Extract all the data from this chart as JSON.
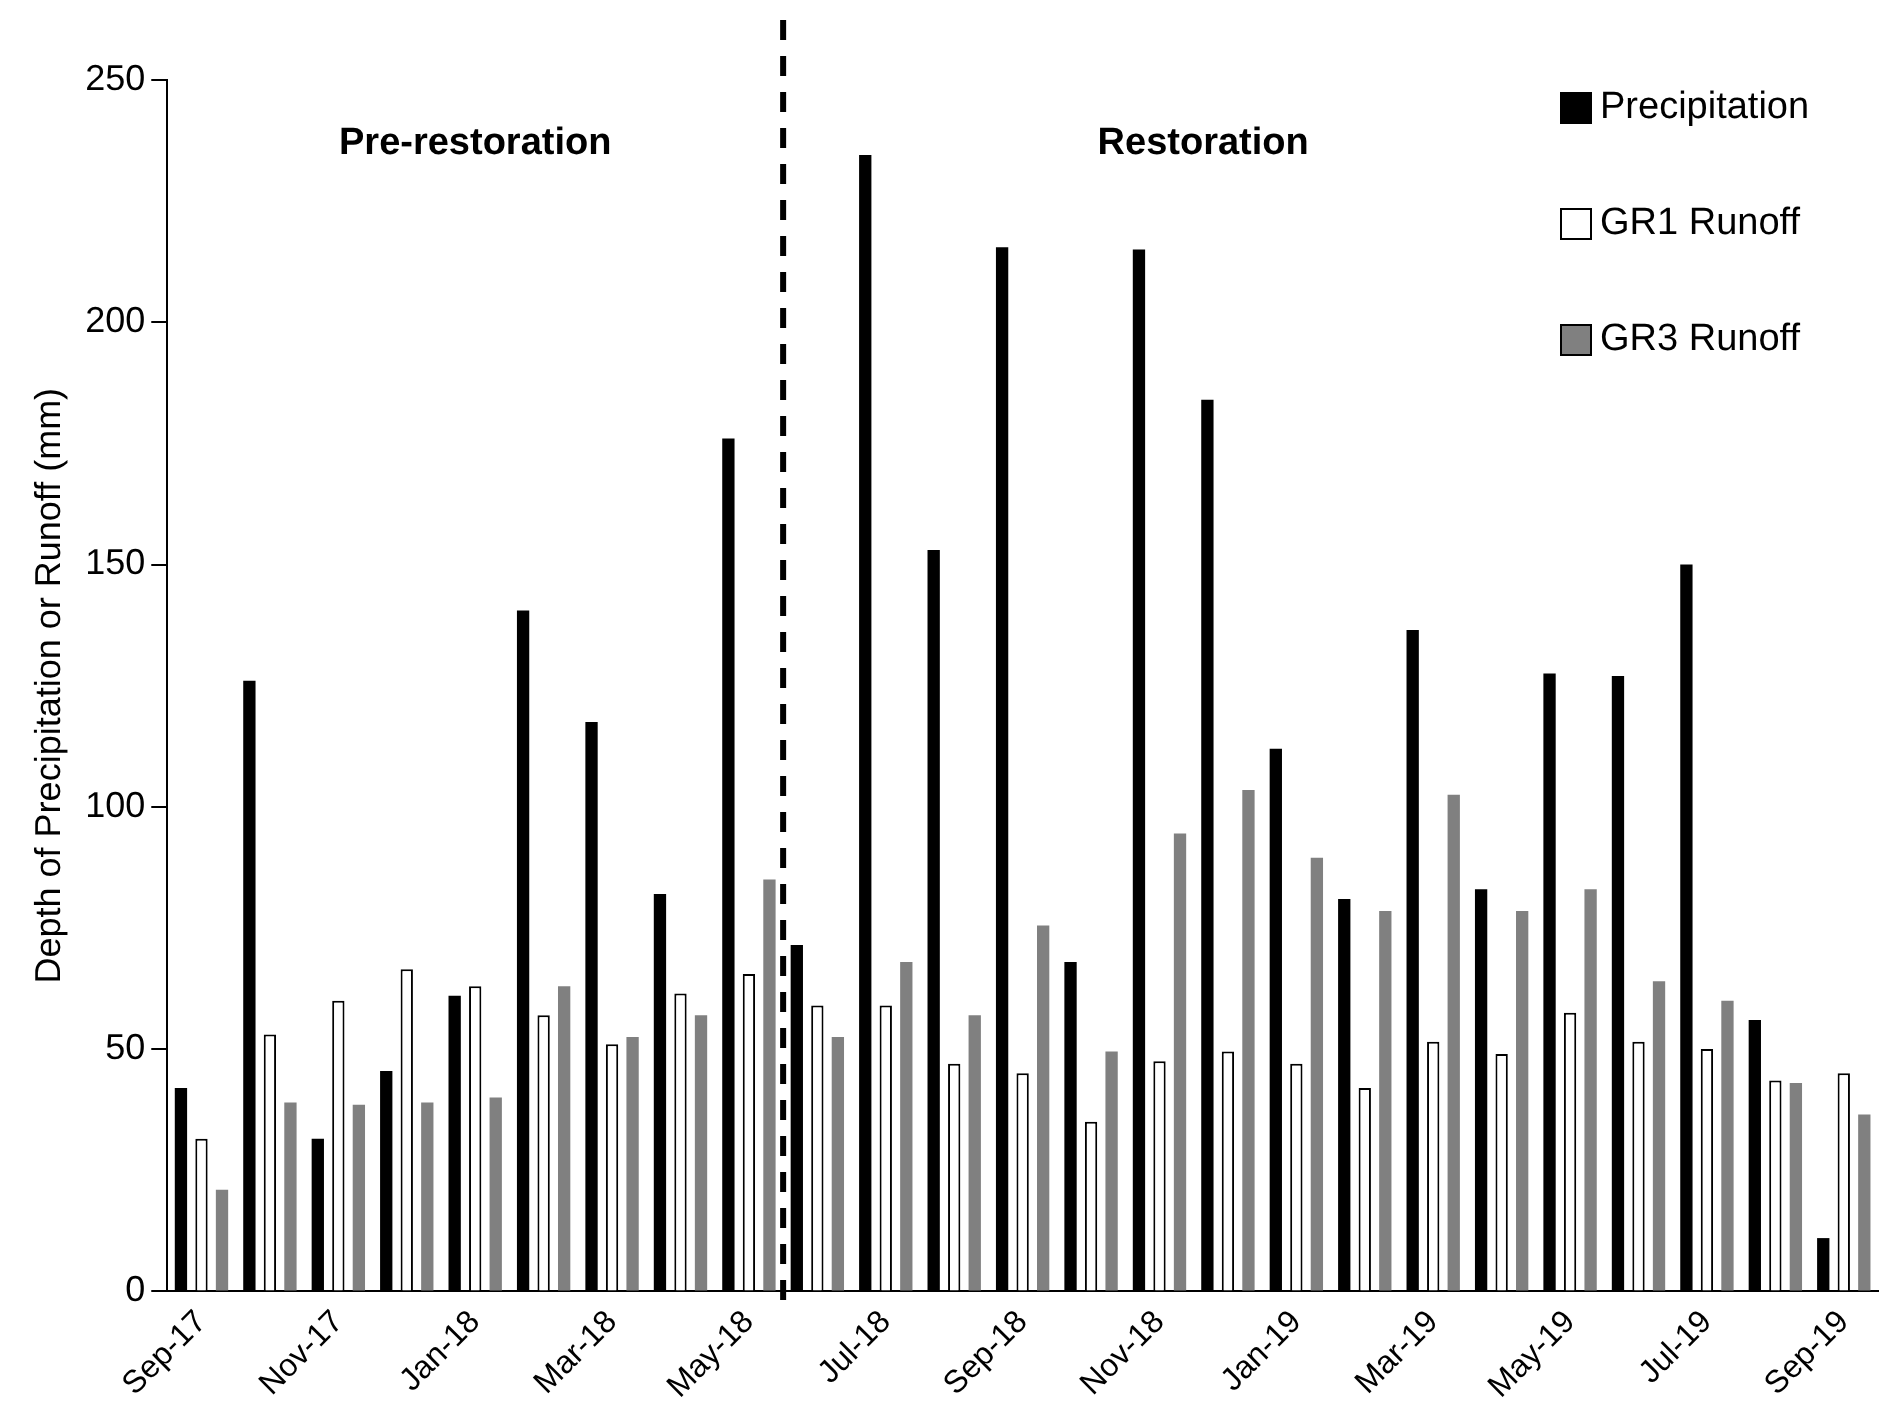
{
  "chart_data": {
    "type": "bar",
    "ylabel": "Depth of Precipitation or Runoff (mm)",
    "categories": [
      "Sep-17",
      null,
      "Nov-17",
      null,
      "Jan-18",
      null,
      "Mar-18",
      null,
      "May-18",
      null,
      "Jul-18",
      null,
      "Sep-18",
      null,
      "Nov-18",
      null,
      "Jan-19",
      null,
      "Mar-19",
      null,
      "May-19",
      null,
      "Jul-19",
      null,
      "Sep-19"
    ],
    "series": [
      {
        "name": "Precipitation",
        "color": "#000000",
        "values": [
          42,
          126,
          31.5,
          45.5,
          61,
          140.5,
          117.5,
          82,
          176,
          71.5,
          234.5,
          153,
          215.5,
          68,
          215,
          184,
          112,
          81,
          136.5,
          83,
          127.5,
          127,
          150,
          56,
          11
        ]
      },
      {
        "name": "GR1 Runoff",
        "color": "#ffffff",
        "values": [
          31.5,
          53,
          60,
          66.5,
          63,
          57,
          51,
          61.5,
          65.5,
          59,
          59,
          47,
          45,
          35,
          47.5,
          49.5,
          47,
          42,
          51.5,
          49,
          57.5,
          51.5,
          50,
          43.5,
          45
        ]
      },
      {
        "name": "GR3 Runoff",
        "color": "#808080",
        "values": [
          21,
          39,
          38.5,
          39,
          40,
          63,
          52.5,
          57,
          85,
          52.5,
          68,
          57,
          75.5,
          49.5,
          94.5,
          103.5,
          89.5,
          78.5,
          102.5,
          78.5,
          83,
          64,
          60,
          43,
          36.5
        ]
      }
    ],
    "ylim": [
      0,
      250
    ],
    "yticks": [
      0,
      50,
      100,
      150,
      200,
      250
    ],
    "grid": false,
    "legend": "top right",
    "annotations": [
      "Pre-restoration",
      "Restoration"
    ]
  }
}
